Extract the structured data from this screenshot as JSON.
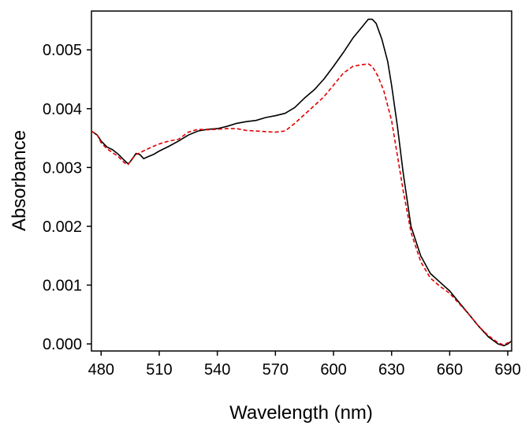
{
  "chart_data": {
    "type": "line",
    "title": "",
    "xlabel": "Wavelength (nm)",
    "ylabel": "Absorbance",
    "xlim": [
      475,
      692
    ],
    "ylim": [
      -0.00012,
      0.00566
    ],
    "x_ticks": [
      480,
      510,
      540,
      570,
      600,
      630,
      660,
      690
    ],
    "y_ticks": [
      0.0,
      0.001,
      0.002,
      0.003,
      0.004,
      0.005
    ],
    "y_tick_labels": [
      "0.000",
      "0.001",
      "0.002",
      "0.003",
      "0.004",
      "0.005"
    ],
    "grid": false,
    "legend": "none",
    "series": [
      {
        "color": "#000000",
        "style": "solid",
        "points": [
          [
            475,
            0.00362
          ],
          [
            478,
            0.00355
          ],
          [
            480,
            0.00345
          ],
          [
            483,
            0.00335
          ],
          [
            486,
            0.0033
          ],
          [
            489,
            0.00322
          ],
          [
            492,
            0.00312
          ],
          [
            494,
            0.00306
          ],
          [
            496,
            0.00314
          ],
          [
            498,
            0.00324
          ],
          [
            500,
            0.00322
          ],
          [
            502,
            0.00315
          ],
          [
            504,
            0.00318
          ],
          [
            507,
            0.00322
          ],
          [
            510,
            0.00328
          ],
          [
            515,
            0.00336
          ],
          [
            520,
            0.00345
          ],
          [
            525,
            0.00355
          ],
          [
            530,
            0.00362
          ],
          [
            535,
            0.00365
          ],
          [
            540,
            0.00366
          ],
          [
            545,
            0.0037
          ],
          [
            550,
            0.00375
          ],
          [
            555,
            0.00378
          ],
          [
            560,
            0.0038
          ],
          [
            565,
            0.00385
          ],
          [
            570,
            0.00388
          ],
          [
            575,
            0.00392
          ],
          [
            580,
            0.00402
          ],
          [
            585,
            0.00418
          ],
          [
            590,
            0.00432
          ],
          [
            595,
            0.0045
          ],
          [
            600,
            0.00472
          ],
          [
            605,
            0.00495
          ],
          [
            610,
            0.0052
          ],
          [
            615,
            0.0054
          ],
          [
            618,
            0.00552
          ],
          [
            620,
            0.00552
          ],
          [
            622,
            0.00545
          ],
          [
            625,
            0.00518
          ],
          [
            628,
            0.0048
          ],
          [
            630,
            0.0044
          ],
          [
            633,
            0.0037
          ],
          [
            636,
            0.0029
          ],
          [
            640,
            0.002
          ],
          [
            645,
            0.0015
          ],
          [
            650,
            0.0012
          ],
          [
            655,
            0.00105
          ],
          [
            660,
            0.0009
          ],
          [
            665,
            0.0007
          ],
          [
            670,
            0.0005
          ],
          [
            675,
            0.0003
          ],
          [
            680,
            0.00012
          ],
          [
            685,
            0.0
          ],
          [
            688,
            -3e-05
          ],
          [
            690,
            0.0
          ],
          [
            692,
            5e-05
          ]
        ]
      },
      {
        "color": "#e00000",
        "style": "dashed",
        "points": [
          [
            475,
            0.00362
          ],
          [
            478,
            0.00355
          ],
          [
            480,
            0.00342
          ],
          [
            483,
            0.00332
          ],
          [
            486,
            0.00325
          ],
          [
            489,
            0.00318
          ],
          [
            492,
            0.00308
          ],
          [
            494,
            0.00305
          ],
          [
            496,
            0.00315
          ],
          [
            498,
            0.00322
          ],
          [
            500,
            0.00325
          ],
          [
            503,
            0.0033
          ],
          [
            507,
            0.00336
          ],
          [
            510,
            0.0034
          ],
          [
            515,
            0.00345
          ],
          [
            520,
            0.00348
          ],
          [
            525,
            0.0036
          ],
          [
            530,
            0.00365
          ],
          [
            535,
            0.00364
          ],
          [
            540,
            0.00365
          ],
          [
            545,
            0.00366
          ],
          [
            550,
            0.00366
          ],
          [
            555,
            0.00363
          ],
          [
            560,
            0.00362
          ],
          [
            565,
            0.00361
          ],
          [
            570,
            0.0036
          ],
          [
            575,
            0.00362
          ],
          [
            580,
            0.00375
          ],
          [
            585,
            0.0039
          ],
          [
            590,
            0.00405
          ],
          [
            595,
            0.0042
          ],
          [
            600,
            0.0044
          ],
          [
            605,
            0.0046
          ],
          [
            610,
            0.00472
          ],
          [
            615,
            0.00475
          ],
          [
            618,
            0.00476
          ],
          [
            620,
            0.00472
          ],
          [
            623,
            0.00455
          ],
          [
            626,
            0.0043
          ],
          [
            630,
            0.0038
          ],
          [
            633,
            0.0032
          ],
          [
            636,
            0.0026
          ],
          [
            640,
            0.0019
          ],
          [
            645,
            0.0014
          ],
          [
            650,
            0.00112
          ],
          [
            655,
            0.00098
          ],
          [
            660,
            0.00086
          ],
          [
            665,
            0.00068
          ],
          [
            670,
            0.0005
          ],
          [
            675,
            0.0003
          ],
          [
            680,
            0.00014
          ],
          [
            685,
            2e-05
          ],
          [
            688,
            -2e-05
          ],
          [
            690,
            2e-05
          ],
          [
            692,
            4e-05
          ]
        ]
      }
    ]
  }
}
